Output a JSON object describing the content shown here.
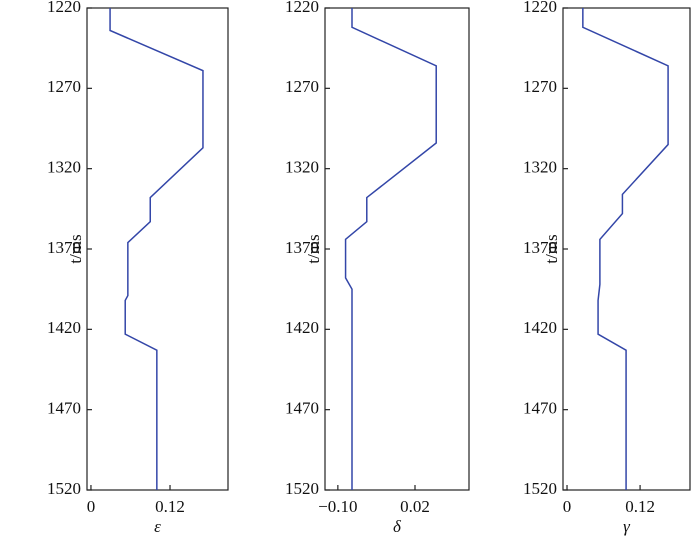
{
  "chart_data": [
    {
      "type": "line",
      "ylabel": "t/ms",
      "xlabel": "ε",
      "color": "#3346a8",
      "xlim": [
        -0.006,
        0.208
      ],
      "xticks": [
        0,
        0.12
      ],
      "ylim": [
        1520,
        1220
      ],
      "yticks": [
        1220,
        1270,
        1320,
        1370,
        1420,
        1470,
        1520
      ],
      "x": [
        0.029,
        0.029,
        0.17,
        0.17,
        0.09,
        0.09,
        0.056,
        0.056,
        0.052,
        0.052,
        0.1,
        0.1
      ],
      "y": [
        1220,
        1234,
        1259,
        1307,
        1338,
        1353,
        1366,
        1399,
        1402,
        1423,
        1433,
        1520
      ]
    },
    {
      "type": "line",
      "ylabel": "t/ms",
      "xlabel": "δ",
      "color": "#3346a8",
      "xlim": [
        -0.12,
        0.104
      ],
      "xticks": [
        {
          "value": -0.1,
          "label": "−0.10"
        },
        0.02
      ],
      "ylim": [
        1520,
        1220
      ],
      "yticks": [
        1220,
        1270,
        1320,
        1370,
        1420,
        1470,
        1520
      ],
      "x": [
        -0.078,
        -0.078,
        0.053,
        0.053,
        -0.055,
        -0.055,
        -0.088,
        -0.088,
        -0.078,
        -0.078
      ],
      "y": [
        1220,
        1232,
        1256,
        1304,
        1338,
        1353,
        1364,
        1388,
        1395,
        1520
      ]
    },
    {
      "type": "line",
      "ylabel": "t/ms",
      "xlabel": "γ",
      "color": "#3346a8",
      "xlim": [
        -0.0066,
        0.202
      ],
      "xticks": [
        0,
        0.12
      ],
      "ylim": [
        1520,
        1220
      ],
      "yticks": [
        1220,
        1270,
        1320,
        1370,
        1420,
        1470,
        1520
      ],
      "x": [
        0.026,
        0.026,
        0.166,
        0.166,
        0.091,
        0.091,
        0.054,
        0.054,
        0.051,
        0.051,
        0.097,
        0.097
      ],
      "y": [
        1220,
        1232,
        1256,
        1305,
        1336,
        1348,
        1364,
        1392,
        1402,
        1423,
        1433,
        1520
      ]
    }
  ]
}
